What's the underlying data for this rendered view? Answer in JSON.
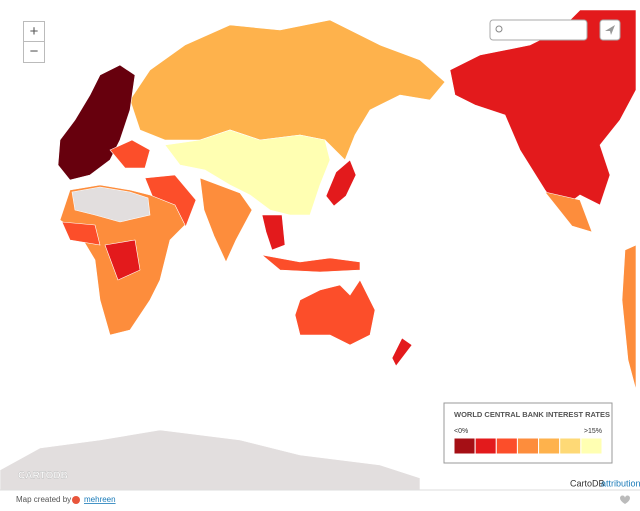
{
  "controls": {
    "zoom_in": "+",
    "zoom_out": "−"
  },
  "legend": {
    "title": "WORLD CENTRAL BANK INTEREST RATES",
    "min_label": "<0%",
    "max_label": ">15%",
    "colors": [
      "#a50f15",
      "#e31a1c",
      "#fc4e2a",
      "#fd8d3c",
      "#feb24c",
      "#fed976",
      "#ffffb2"
    ]
  },
  "watermark": "CARTODB",
  "attribution": {
    "provider": "CartoDB",
    "link": "attribution"
  },
  "footer": {
    "text": "Map created by",
    "author": "mehreen"
  }
}
